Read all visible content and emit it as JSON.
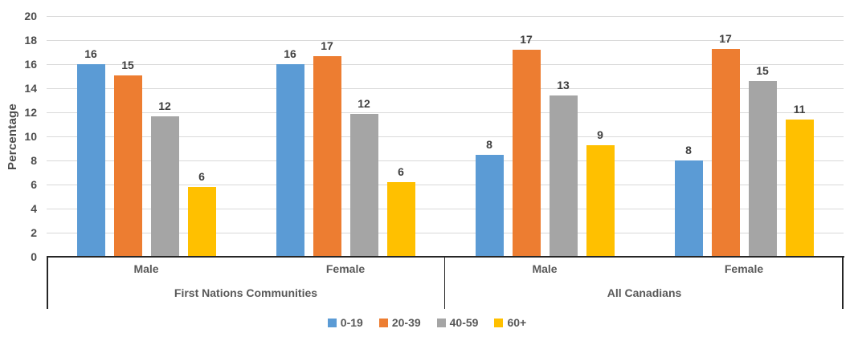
{
  "chart_data": {
    "type": "bar",
    "title": "",
    "xlabel": "",
    "ylabel": "Percentage",
    "ylim": [
      0,
      20
    ],
    "ytick_step": 2,
    "grid": true,
    "legend_position": "bottom",
    "group_labels": [
      "First Nations Communities",
      "All Canadians"
    ],
    "categories": [
      "Male",
      "Female",
      "Male",
      "Female"
    ],
    "series": [
      {
        "name": "0-19",
        "color": "#5B9BD5",
        "data_labels": [
          16,
          16,
          8,
          8
        ],
        "values": [
          16.0,
          16.0,
          8.5,
          8.0
        ]
      },
      {
        "name": "20-39",
        "color": "#ED7D31",
        "data_labels": [
          15,
          17,
          17,
          17
        ],
        "values": [
          15.1,
          16.7,
          17.2,
          17.3
        ]
      },
      {
        "name": "40-59",
        "color": "#A5A5A5",
        "data_labels": [
          12,
          12,
          13,
          15
        ],
        "values": [
          11.7,
          11.9,
          13.4,
          14.6
        ]
      },
      {
        "name": "60+",
        "color": "#FFC000",
        "data_labels": [
          6,
          6,
          9,
          11
        ],
        "values": [
          5.8,
          6.2,
          9.3,
          11.4
        ]
      }
    ]
  },
  "colors": {
    "gridline": "#d9d9d9",
    "axis_line": "#262626",
    "tick_text": "#4d4d4d",
    "category_text": "#595959",
    "data_label_text": "#3f3f3f"
  }
}
